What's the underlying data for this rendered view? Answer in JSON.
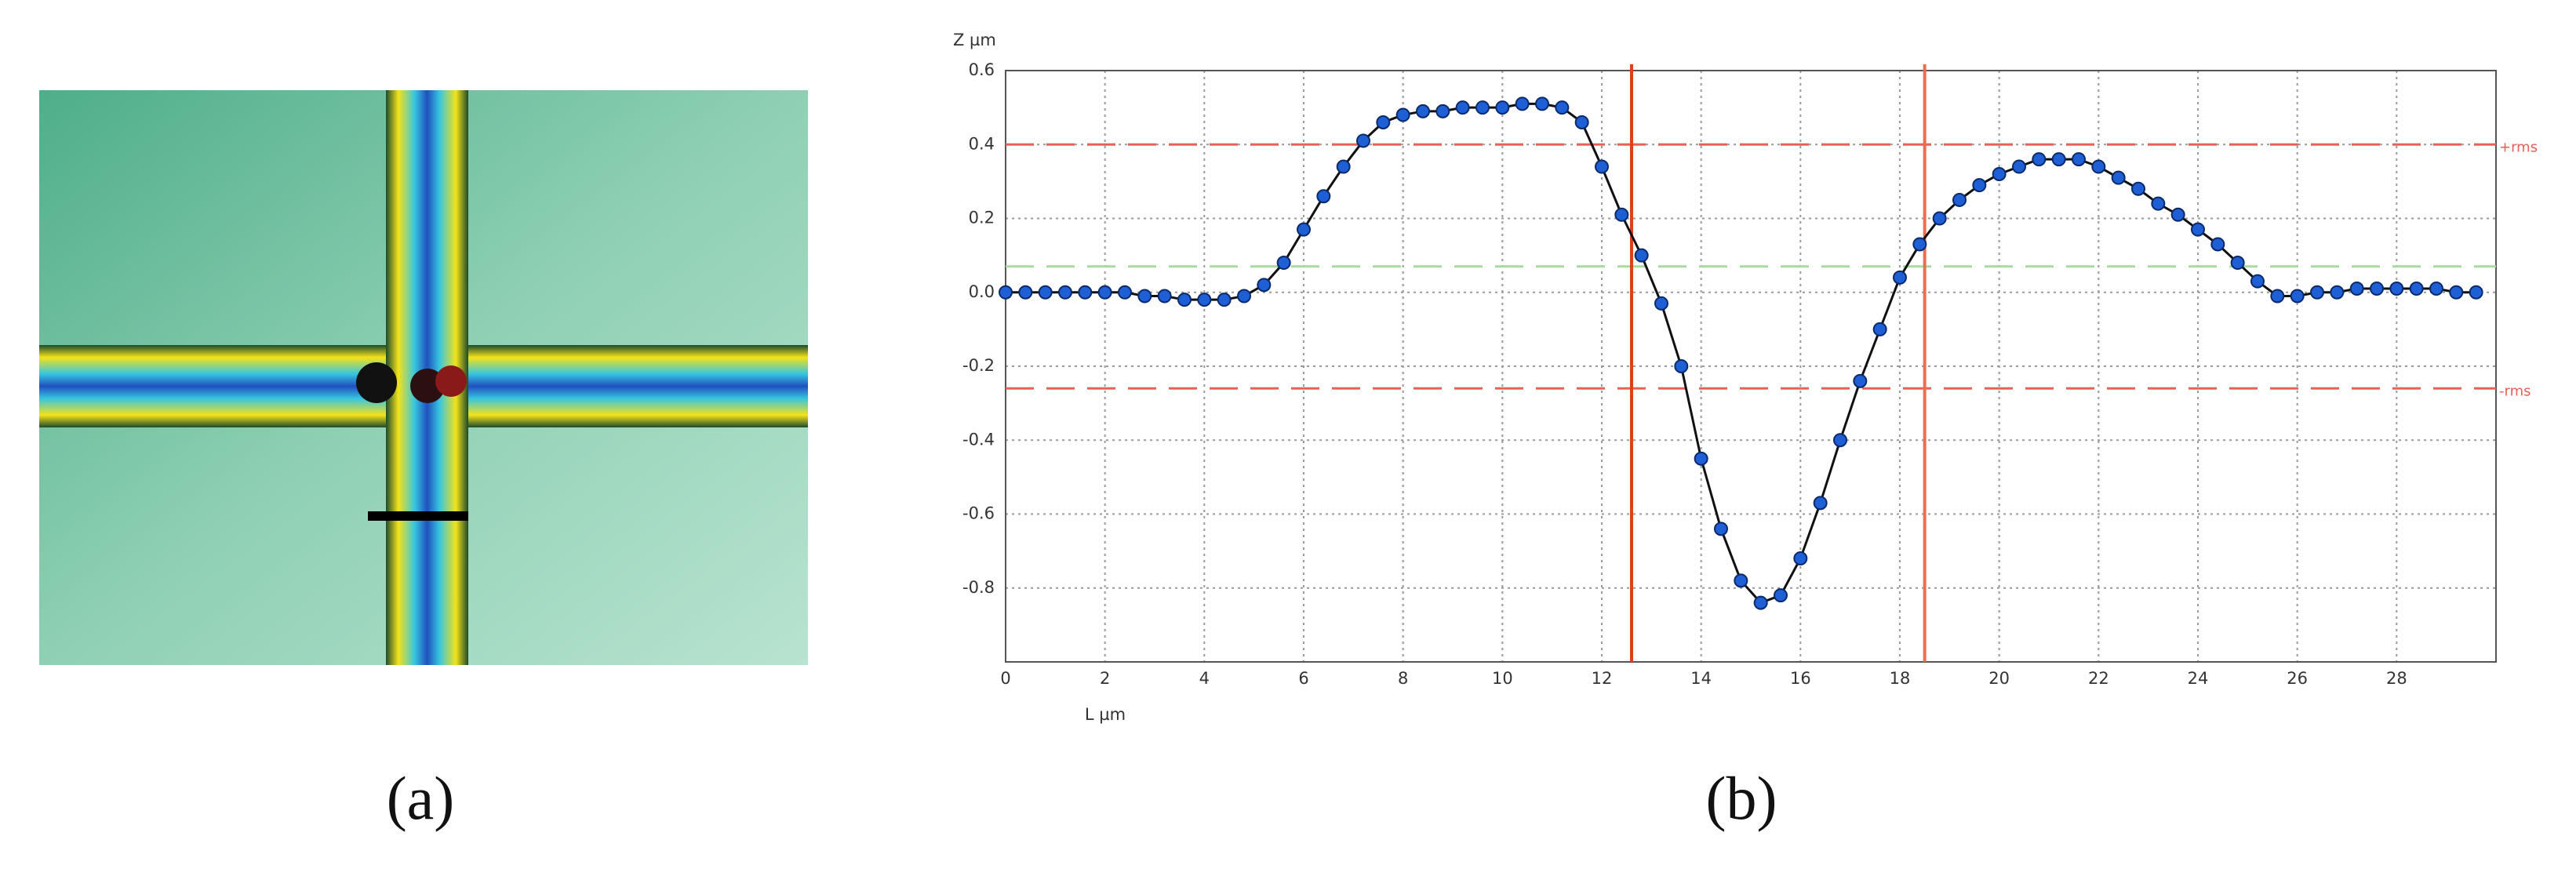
{
  "panel_labels": [
    "(a)",
    "(b)"
  ],
  "chart_data": {
    "type": "line",
    "ylabel": "Z µm",
    "xlabel": "L µm",
    "xlim": [
      0,
      30
    ],
    "ylim": [
      -1.0,
      0.6
    ],
    "xticks": [
      0,
      2,
      4,
      6,
      8,
      10,
      12,
      14,
      16,
      18,
      20,
      22,
      24,
      26,
      28
    ],
    "yticks": [
      0.6,
      0.4,
      0.2,
      {
        "value": 0,
        "label": "0.0"
      },
      -0.2,
      -0.4,
      -0.6,
      -0.8
    ],
    "grid": true,
    "hlines": [
      {
        "value": 0.4,
        "color": "#e8605a",
        "label": "+rms"
      },
      {
        "value": 0.07,
        "color": "#a6dca0"
      },
      {
        "value": -0.26,
        "color": "#e8605a",
        "label": "-rms"
      }
    ],
    "vlines": [
      {
        "value": 12.6,
        "color": "#e0401c"
      },
      {
        "value": 18.5,
        "color": "#e87050"
      }
    ],
    "series": [
      {
        "color": "#1f5fd6",
        "line_color": "#111111",
        "x": [
          0,
          0.4,
          0.8,
          1.2,
          1.6,
          2.0,
          2.4,
          2.8,
          3.2,
          3.6,
          4.0,
          4.4,
          4.8,
          5.2,
          5.6,
          6.0,
          6.4,
          6.8,
          7.2,
          7.6,
          8.0,
          8.4,
          8.8,
          9.2,
          9.6,
          10.0,
          10.4,
          10.8,
          11.2,
          11.6,
          12.0,
          12.4,
          12.8,
          13.2,
          13.6,
          14.0,
          14.4,
          14.8,
          15.2,
          15.6,
          16.0,
          16.4,
          16.8,
          17.2,
          17.6,
          18.0,
          18.4,
          18.8,
          19.2,
          19.6,
          20.0,
          20.4,
          20.8,
          21.2,
          21.6,
          22.0,
          22.4,
          22.8,
          23.2,
          23.6,
          24.0,
          24.4,
          24.8,
          25.2,
          25.6,
          26.0,
          26.4,
          26.8,
          27.2,
          27.6,
          28.0,
          28.4,
          28.8,
          29.2,
          29.6
        ],
        "values": [
          0,
          0,
          0,
          0,
          0,
          0,
          0,
          -0.01,
          -0.01,
          -0.02,
          -0.02,
          -0.02,
          -0.01,
          0.02,
          0.08,
          0.17,
          0.26,
          0.34,
          0.41,
          0.46,
          0.48,
          0.49,
          0.49,
          0.5,
          0.5,
          0.5,
          0.51,
          0.51,
          0.5,
          0.46,
          0.34,
          0.21,
          0.1,
          -0.03,
          -0.2,
          -0.45,
          -0.64,
          -0.78,
          -0.84,
          -0.82,
          -0.72,
          -0.57,
          -0.4,
          -0.24,
          -0.1,
          0.04,
          0.13,
          0.2,
          0.25,
          0.29,
          0.32,
          0.34,
          0.36,
          0.36,
          0.36,
          0.34,
          0.31,
          0.28,
          0.24,
          0.21,
          0.17,
          0.13,
          0.08,
          0.03,
          -0.01,
          -0.01,
          0,
          0,
          0.01,
          0.01,
          0.01,
          0.01,
          0.01,
          0,
          0
        ]
      }
    ]
  }
}
